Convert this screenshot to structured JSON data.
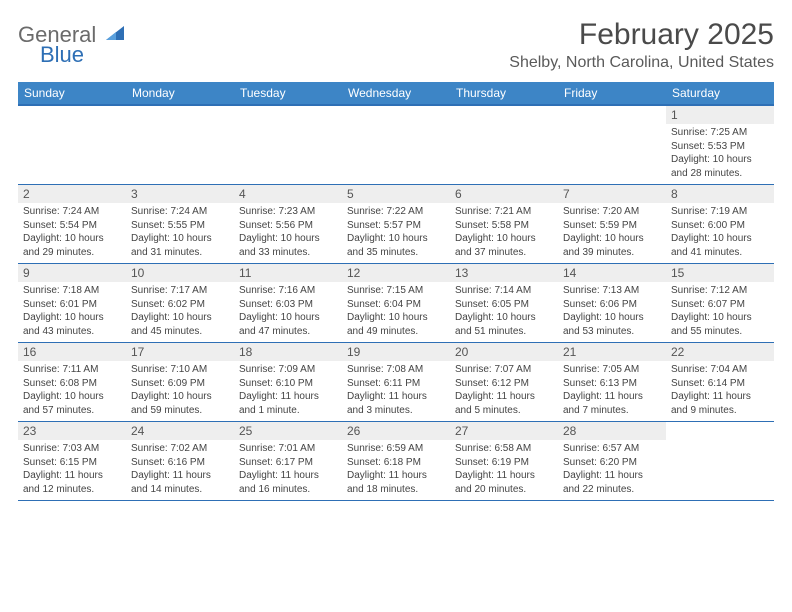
{
  "logo": {
    "word1": "General",
    "word2": "Blue",
    "sail_color": "#2e6fb5"
  },
  "header": {
    "month_title": "February 2025",
    "location": "Shelby, North Carolina, United States"
  },
  "colors": {
    "header_bg": "#3d85c6",
    "header_border": "#2e6fb5",
    "daynum_bg": "#eeeeee",
    "text": "#444444"
  },
  "weekdays": [
    "Sunday",
    "Monday",
    "Tuesday",
    "Wednesday",
    "Thursday",
    "Friday",
    "Saturday"
  ],
  "weeks": [
    [
      null,
      null,
      null,
      null,
      null,
      null,
      {
        "n": "1",
        "sunrise": "Sunrise: 7:25 AM",
        "sunset": "Sunset: 5:53 PM",
        "daylight": "Daylight: 10 hours and 28 minutes."
      }
    ],
    [
      {
        "n": "2",
        "sunrise": "Sunrise: 7:24 AM",
        "sunset": "Sunset: 5:54 PM",
        "daylight": "Daylight: 10 hours and 29 minutes."
      },
      {
        "n": "3",
        "sunrise": "Sunrise: 7:24 AM",
        "sunset": "Sunset: 5:55 PM",
        "daylight": "Daylight: 10 hours and 31 minutes."
      },
      {
        "n": "4",
        "sunrise": "Sunrise: 7:23 AM",
        "sunset": "Sunset: 5:56 PM",
        "daylight": "Daylight: 10 hours and 33 minutes."
      },
      {
        "n": "5",
        "sunrise": "Sunrise: 7:22 AM",
        "sunset": "Sunset: 5:57 PM",
        "daylight": "Daylight: 10 hours and 35 minutes."
      },
      {
        "n": "6",
        "sunrise": "Sunrise: 7:21 AM",
        "sunset": "Sunset: 5:58 PM",
        "daylight": "Daylight: 10 hours and 37 minutes."
      },
      {
        "n": "7",
        "sunrise": "Sunrise: 7:20 AM",
        "sunset": "Sunset: 5:59 PM",
        "daylight": "Daylight: 10 hours and 39 minutes."
      },
      {
        "n": "8",
        "sunrise": "Sunrise: 7:19 AM",
        "sunset": "Sunset: 6:00 PM",
        "daylight": "Daylight: 10 hours and 41 minutes."
      }
    ],
    [
      {
        "n": "9",
        "sunrise": "Sunrise: 7:18 AM",
        "sunset": "Sunset: 6:01 PM",
        "daylight": "Daylight: 10 hours and 43 minutes."
      },
      {
        "n": "10",
        "sunrise": "Sunrise: 7:17 AM",
        "sunset": "Sunset: 6:02 PM",
        "daylight": "Daylight: 10 hours and 45 minutes."
      },
      {
        "n": "11",
        "sunrise": "Sunrise: 7:16 AM",
        "sunset": "Sunset: 6:03 PM",
        "daylight": "Daylight: 10 hours and 47 minutes."
      },
      {
        "n": "12",
        "sunrise": "Sunrise: 7:15 AM",
        "sunset": "Sunset: 6:04 PM",
        "daylight": "Daylight: 10 hours and 49 minutes."
      },
      {
        "n": "13",
        "sunrise": "Sunrise: 7:14 AM",
        "sunset": "Sunset: 6:05 PM",
        "daylight": "Daylight: 10 hours and 51 minutes."
      },
      {
        "n": "14",
        "sunrise": "Sunrise: 7:13 AM",
        "sunset": "Sunset: 6:06 PM",
        "daylight": "Daylight: 10 hours and 53 minutes."
      },
      {
        "n": "15",
        "sunrise": "Sunrise: 7:12 AM",
        "sunset": "Sunset: 6:07 PM",
        "daylight": "Daylight: 10 hours and 55 minutes."
      }
    ],
    [
      {
        "n": "16",
        "sunrise": "Sunrise: 7:11 AM",
        "sunset": "Sunset: 6:08 PM",
        "daylight": "Daylight: 10 hours and 57 minutes."
      },
      {
        "n": "17",
        "sunrise": "Sunrise: 7:10 AM",
        "sunset": "Sunset: 6:09 PM",
        "daylight": "Daylight: 10 hours and 59 minutes."
      },
      {
        "n": "18",
        "sunrise": "Sunrise: 7:09 AM",
        "sunset": "Sunset: 6:10 PM",
        "daylight": "Daylight: 11 hours and 1 minute."
      },
      {
        "n": "19",
        "sunrise": "Sunrise: 7:08 AM",
        "sunset": "Sunset: 6:11 PM",
        "daylight": "Daylight: 11 hours and 3 minutes."
      },
      {
        "n": "20",
        "sunrise": "Sunrise: 7:07 AM",
        "sunset": "Sunset: 6:12 PM",
        "daylight": "Daylight: 11 hours and 5 minutes."
      },
      {
        "n": "21",
        "sunrise": "Sunrise: 7:05 AM",
        "sunset": "Sunset: 6:13 PM",
        "daylight": "Daylight: 11 hours and 7 minutes."
      },
      {
        "n": "22",
        "sunrise": "Sunrise: 7:04 AM",
        "sunset": "Sunset: 6:14 PM",
        "daylight": "Daylight: 11 hours and 9 minutes."
      }
    ],
    [
      {
        "n": "23",
        "sunrise": "Sunrise: 7:03 AM",
        "sunset": "Sunset: 6:15 PM",
        "daylight": "Daylight: 11 hours and 12 minutes."
      },
      {
        "n": "24",
        "sunrise": "Sunrise: 7:02 AM",
        "sunset": "Sunset: 6:16 PM",
        "daylight": "Daylight: 11 hours and 14 minutes."
      },
      {
        "n": "25",
        "sunrise": "Sunrise: 7:01 AM",
        "sunset": "Sunset: 6:17 PM",
        "daylight": "Daylight: 11 hours and 16 minutes."
      },
      {
        "n": "26",
        "sunrise": "Sunrise: 6:59 AM",
        "sunset": "Sunset: 6:18 PM",
        "daylight": "Daylight: 11 hours and 18 minutes."
      },
      {
        "n": "27",
        "sunrise": "Sunrise: 6:58 AM",
        "sunset": "Sunset: 6:19 PM",
        "daylight": "Daylight: 11 hours and 20 minutes."
      },
      {
        "n": "28",
        "sunrise": "Sunrise: 6:57 AM",
        "sunset": "Sunset: 6:20 PM",
        "daylight": "Daylight: 11 hours and 22 minutes."
      },
      null
    ]
  ]
}
